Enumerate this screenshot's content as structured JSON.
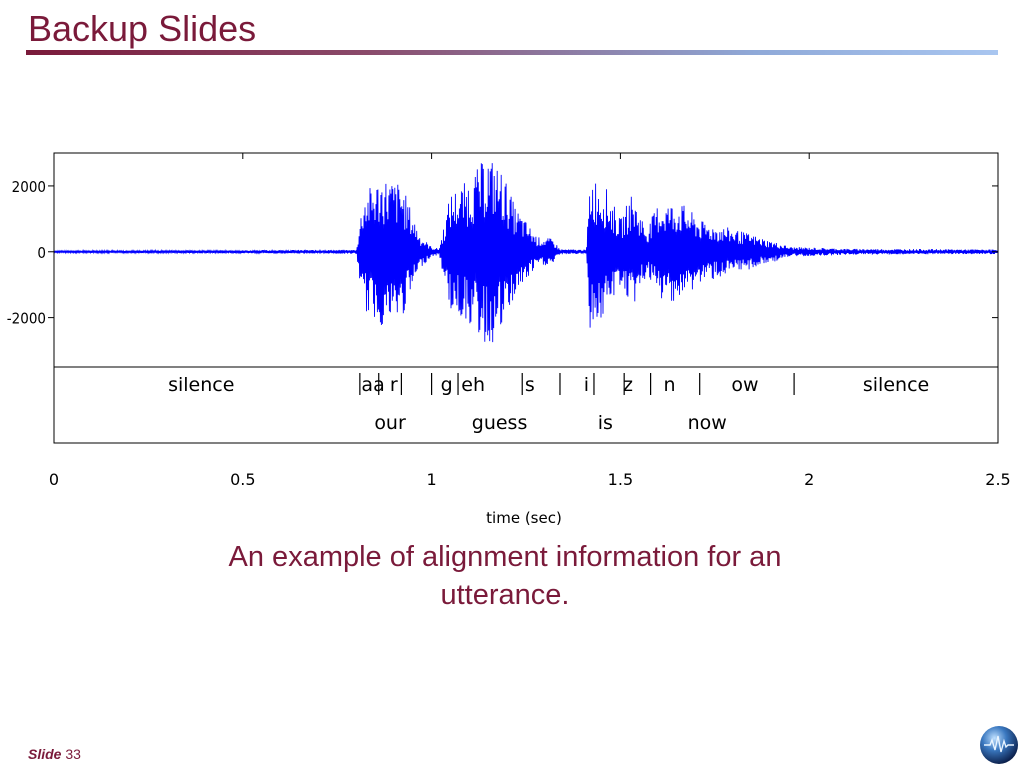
{
  "slide": {
    "title": "Backup Slides",
    "caption": "An example of alignment information for an utterance.",
    "slide_label": "Slide",
    "slide_number": "33"
  },
  "colors": {
    "accent": "#7a1a3a",
    "waveform": "#0000ff"
  },
  "icons": {
    "logo": "globe-logo-icon"
  },
  "chart_data": {
    "type": "line",
    "xlabel": "time (sec)",
    "xlim": [
      0,
      2.5
    ],
    "ylim": [
      -3500,
      3000
    ],
    "x_ticks": [
      0,
      0.5,
      1,
      1.5,
      2,
      2.5
    ],
    "x_tick_labels": [
      "0",
      "0.5",
      "1",
      "1.5",
      "2",
      "2.5"
    ],
    "y_ticks": [
      2000,
      0,
      -2000
    ],
    "y_tick_labels": [
      "2000",
      "0",
      "-2000"
    ],
    "series": [
      {
        "color": "#0000ff",
        "envelope": [
          {
            "x": 0.0,
            "amp": 30
          },
          {
            "x": 0.8,
            "amp": 60
          },
          {
            "x": 0.82,
            "amp": 1800
          },
          {
            "x": 0.87,
            "amp": 2300
          },
          {
            "x": 0.92,
            "amp": 2100
          },
          {
            "x": 0.97,
            "amp": 500
          },
          {
            "x": 1.0,
            "amp": 150
          },
          {
            "x": 1.02,
            "amp": 100
          },
          {
            "x": 1.05,
            "amp": 1800
          },
          {
            "x": 1.1,
            "amp": 2200
          },
          {
            "x": 1.15,
            "amp": 3000
          },
          {
            "x": 1.19,
            "amp": 2400
          },
          {
            "x": 1.22,
            "amp": 1400
          },
          {
            "x": 1.28,
            "amp": 450
          },
          {
            "x": 1.32,
            "amp": 400
          },
          {
            "x": 1.34,
            "amp": 80
          },
          {
            "x": 1.41,
            "amp": 60
          },
          {
            "x": 1.42,
            "amp": 2400
          },
          {
            "x": 1.46,
            "amp": 2000
          },
          {
            "x": 1.5,
            "amp": 1000
          },
          {
            "x": 1.53,
            "amp": 1800
          },
          {
            "x": 1.57,
            "amp": 700
          },
          {
            "x": 1.6,
            "amp": 1500
          },
          {
            "x": 1.66,
            "amp": 1500
          },
          {
            "x": 1.72,
            "amp": 900
          },
          {
            "x": 1.8,
            "amp": 700
          },
          {
            "x": 1.88,
            "amp": 400
          },
          {
            "x": 1.95,
            "amp": 150
          },
          {
            "x": 2.1,
            "amp": 90
          },
          {
            "x": 2.5,
            "amp": 70
          }
        ]
      }
    ],
    "phone_boundaries": [
      0.81,
      0.86,
      0.92,
      1.0,
      1.07,
      1.24,
      1.34,
      1.43,
      1.51,
      1.58,
      1.71,
      1.96
    ],
    "phones": [
      {
        "label": "silence",
        "x": 0.39
      },
      {
        "label": "aa",
        "x": 0.845
      },
      {
        "label": "r",
        "x": 0.9
      },
      {
        "label": "g",
        "x": 1.04
      },
      {
        "label": "eh",
        "x": 1.11
      },
      {
        "label": "s",
        "x": 1.26
      },
      {
        "label": "i",
        "x": 1.41
      },
      {
        "label": "z",
        "x": 1.52
      },
      {
        "label": "n",
        "x": 1.63
      },
      {
        "label": "ow",
        "x": 1.83
      },
      {
        "label": "silence",
        "x": 2.23
      }
    ],
    "words": [
      {
        "label": "our",
        "x": 0.89
      },
      {
        "label": "guess",
        "x": 1.18
      },
      {
        "label": "is",
        "x": 1.46
      },
      {
        "label": "now",
        "x": 1.73
      }
    ]
  }
}
